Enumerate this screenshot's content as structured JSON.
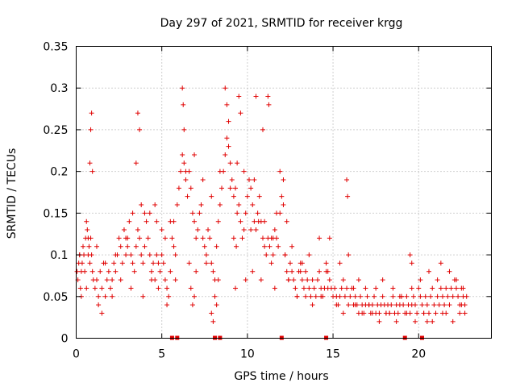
{
  "chart_data": {
    "type": "scatter",
    "title": "Day 297 of 2021, SRMTID for receiver krgg",
    "xlabel": "GPS time / hours",
    "ylabel": "SRMTID / TECUs",
    "xlim": [
      0,
      24.25
    ],
    "ylim": [
      0,
      0.35
    ],
    "xticks": [
      0,
      5,
      10,
      15,
      20
    ],
    "xtick_labels": [
      "0",
      "5",
      "10",
      "15",
      "20"
    ],
    "yticks": [
      0,
      0.05,
      0.1,
      0.15,
      0.2,
      0.25,
      0.3,
      0.35
    ],
    "ytick_labels": [
      "0",
      "0.05",
      "0.1",
      "0.15",
      "0.2",
      "0.25",
      "0.3",
      "0.35"
    ],
    "grid": true,
    "marker": "+",
    "color": "#e00000",
    "series": [
      {
        "name": "SRMTID",
        "x": [
          0.05,
          0.1,
          0.15,
          0.2,
          0.25,
          0.3,
          0.35,
          0.4,
          0.45,
          0.5,
          0.55,
          0.6,
          0.65,
          0.7,
          0.75,
          0.8,
          0.85,
          0.9,
          0.95,
          1.0,
          1.1,
          1.2,
          1.3,
          1.4,
          1.5,
          1.6,
          1.7,
          1.8,
          1.9,
          2.0,
          2.1,
          2.2,
          2.3,
          2.4,
          2.5,
          2.6,
          2.7,
          2.8,
          2.9,
          3.0,
          3.1,
          3.2,
          3.3,
          3.4,
          3.5,
          3.6,
          3.7,
          3.8,
          3.9,
          4.0,
          4.1,
          4.2,
          4.3,
          4.4,
          4.5,
          4.6,
          4.7,
          4.8,
          4.9,
          5.0,
          5.1,
          5.2,
          5.3,
          5.4,
          5.5,
          5.6,
          5.7,
          5.8,
          5.9,
          6.0,
          6.1,
          6.2,
          6.3,
          6.4,
          6.5,
          6.6,
          6.7,
          6.8,
          6.9,
          7.0,
          7.1,
          7.2,
          7.3,
          7.4,
          7.5,
          7.6,
          7.7,
          7.8,
          7.9,
          8.0,
          8.1,
          8.2,
          8.3,
          8.4,
          8.5,
          8.6,
          8.7,
          8.8,
          8.9,
          9.0,
          9.1,
          9.2,
          9.3,
          9.4,
          9.5,
          9.6,
          9.7,
          9.8,
          9.9,
          10.0,
          10.1,
          10.2,
          10.3,
          10.4,
          10.5,
          10.6,
          10.7,
          10.8,
          10.9,
          11.0,
          11.1,
          11.2,
          11.3,
          11.4,
          11.5,
          11.6,
          11.7,
          11.8,
          11.9,
          12.0,
          12.1,
          12.2,
          12.3,
          12.4,
          12.5,
          12.6,
          12.7,
          12.8,
          12.9,
          13.0,
          13.1,
          13.2,
          13.3,
          13.4,
          13.5,
          13.6,
          13.7,
          13.8,
          13.9,
          14.0,
          14.1,
          14.2,
          14.3,
          14.4,
          14.5,
          14.6,
          14.7,
          14.8,
          14.9,
          15.0,
          15.1,
          15.2,
          15.3,
          15.4,
          15.5,
          15.6,
          15.7,
          15.8,
          15.9,
          16.0,
          16.1,
          16.2,
          16.3,
          16.4,
          16.5,
          16.6,
          16.7,
          16.8,
          16.9,
          17.0,
          17.1,
          17.2,
          17.3,
          17.4,
          17.5,
          17.6,
          17.7,
          17.8,
          17.9,
          18.0,
          18.1,
          18.2,
          18.3,
          18.4,
          18.5,
          18.6,
          18.7,
          18.8,
          18.9,
          19.0,
          19.1,
          19.2,
          19.3,
          19.4,
          19.5,
          19.6,
          19.7,
          19.8,
          19.9,
          20.0,
          20.1,
          20.2,
          20.3,
          20.4,
          20.5,
          20.6,
          20.7,
          20.8,
          20.9,
          21.0,
          21.1,
          21.2,
          21.3,
          21.4,
          21.5,
          21.6,
          21.7,
          21.8,
          21.9,
          22.0,
          22.1,
          22.2,
          22.3,
          22.4,
          22.5,
          22.6,
          22.7,
          22.8,
          0.8,
          0.85,
          0.9,
          0.95,
          3.6,
          3.7,
          3.5,
          6.2,
          6.25,
          6.3,
          8.7,
          8.8,
          8.9,
          10.5,
          11.2,
          11.25,
          9.5,
          9.6,
          10.9,
          11.9,
          12.1,
          15.8,
          15.85,
          19.5,
          19.6,
          21.3,
          0.3,
          0.6,
          1.3,
          1.5,
          2.1,
          2.6,
          3.2,
          3.9,
          4.4,
          4.8,
          5.3,
          5.8,
          6.6,
          7.0,
          7.6,
          8.3,
          9.3,
          9.9,
          10.3,
          10.8,
          11.6,
          12.4,
          12.9,
          13.4,
          13.8,
          14.3,
          14.7,
          15.2,
          15.6,
          16.3,
          16.7,
          17.3,
          17.7,
          18.3,
          18.7,
          19.3,
          19.8,
          20.3,
          20.8,
          21.6,
          22.0,
          22.4,
          22.7,
          0.2,
          0.7,
          1.2,
          1.7,
          2.3,
          2.8,
          3.3,
          3.8,
          4.3,
          4.7,
          5.2,
          5.7,
          6.4,
          6.9,
          7.4,
          7.9,
          8.4,
          9.0,
          9.4,
          9.8,
          10.4,
          11.0,
          11.4,
          12.2,
          12.6,
          13.2,
          13.6,
          14.2,
          14.6,
          15.4,
          15.9,
          16.5,
          16.9,
          17.5,
          17.9,
          18.5,
          18.9,
          19.6,
          20.1,
          20.6,
          21.1,
          21.8,
          22.2,
          22.6,
          7.9,
          8.0,
          8.1,
          8.2,
          6.7,
          6.8,
          6.9,
          9.2,
          9.35,
          10.2,
          10.65,
          11.5,
          11.7,
          12.3,
          2.9,
          3.0,
          4.0,
          4.6,
          5.0,
          5.5,
          13.1,
          14.8,
          16.2,
          17.1,
          18.1,
          19.0,
          20.5,
          21.4,
          22.5
        ],
        "y": [
          0.08,
          0.07,
          0.09,
          0.1,
          0.06,
          0.08,
          0.09,
          0.11,
          0.1,
          0.08,
          0.12,
          0.14,
          0.13,
          0.1,
          0.11,
          0.09,
          0.12,
          0.1,
          0.08,
          0.07,
          0.06,
          0.07,
          0.05,
          0.08,
          0.06,
          0.09,
          0.05,
          0.07,
          0.08,
          0.06,
          0.07,
          0.09,
          0.08,
          0.1,
          0.12,
          0.11,
          0.09,
          0.13,
          0.12,
          0.11,
          0.14,
          0.1,
          0.09,
          0.08,
          0.11,
          0.13,
          0.12,
          0.1,
          0.09,
          0.11,
          0.14,
          0.12,
          0.1,
          0.08,
          0.09,
          0.07,
          0.1,
          0.09,
          0.08,
          0.1,
          0.09,
          0.07,
          0.06,
          0.05,
          0.08,
          0.12,
          0.14,
          0.1,
          0.16,
          0.18,
          0.2,
          0.22,
          0.21,
          0.19,
          0.17,
          0.2,
          0.18,
          0.15,
          0.14,
          0.12,
          0.13,
          0.15,
          0.16,
          0.12,
          0.11,
          0.1,
          0.13,
          0.12,
          0.09,
          0.08,
          0.07,
          0.11,
          0.14,
          0.16,
          0.18,
          0.2,
          0.22,
          0.24,
          0.23,
          0.21,
          0.19,
          0.17,
          0.18,
          0.15,
          0.16,
          0.14,
          0.12,
          0.13,
          0.15,
          0.17,
          0.19,
          0.18,
          0.16,
          0.14,
          0.13,
          0.15,
          0.17,
          0.14,
          0.12,
          0.11,
          0.1,
          0.12,
          0.11,
          0.09,
          0.1,
          0.13,
          0.12,
          0.11,
          0.15,
          0.17,
          0.16,
          0.1,
          0.08,
          0.07,
          0.09,
          0.08,
          0.07,
          0.06,
          0.05,
          0.08,
          0.09,
          0.07,
          0.06,
          0.08,
          0.07,
          0.06,
          0.05,
          0.07,
          0.06,
          0.05,
          0.07,
          0.08,
          0.06,
          0.05,
          0.06,
          0.09,
          0.08,
          0.07,
          0.06,
          0.05,
          0.06,
          0.05,
          0.04,
          0.05,
          0.06,
          0.07,
          0.05,
          0.06,
          0.04,
          0.05,
          0.06,
          0.04,
          0.05,
          0.04,
          0.03,
          0.05,
          0.04,
          0.03,
          0.04,
          0.05,
          0.04,
          0.03,
          0.04,
          0.05,
          0.03,
          0.04,
          0.03,
          0.04,
          0.05,
          0.04,
          0.03,
          0.04,
          0.03,
          0.04,
          0.05,
          0.03,
          0.04,
          0.03,
          0.04,
          0.05,
          0.04,
          0.03,
          0.05,
          0.04,
          0.03,
          0.04,
          0.05,
          0.04,
          0.03,
          0.06,
          0.05,
          0.04,
          0.03,
          0.05,
          0.04,
          0.03,
          0.05,
          0.06,
          0.04,
          0.03,
          0.05,
          0.04,
          0.06,
          0.05,
          0.04,
          0.06,
          0.05,
          0.04,
          0.06,
          0.05,
          0.07,
          0.06,
          0.05,
          0.04,
          0.06,
          0.05,
          0.04,
          0.05,
          0.21,
          0.25,
          0.27,
          0.2,
          0.27,
          0.25,
          0.21,
          0.3,
          0.28,
          0.25,
          0.3,
          0.28,
          0.26,
          0.29,
          0.29,
          0.28,
          0.29,
          0.27,
          0.25,
          0.2,
          0.19,
          0.19,
          0.17,
          0.1,
          0.09,
          0.09,
          0.05,
          0.06,
          0.04,
          0.03,
          0.05,
          0.07,
          0.06,
          0.05,
          0.07,
          0.06,
          0.04,
          0.07,
          0.09,
          0.08,
          0.09,
          0.07,
          0.06,
          0.07,
          0.08,
          0.07,
          0.06,
          0.07,
          0.05,
          0.05,
          0.04,
          0.05,
          0.06,
          0.04,
          0.03,
          0.04,
          0.03,
          0.03,
          0.02,
          0.03,
          0.02,
          0.03,
          0.02,
          0.03,
          0.02,
          0.03,
          0.02,
          0.03,
          0.03,
          0.1,
          0.12,
          0.11,
          0.09,
          0.1,
          0.13,
          0.15,
          0.16,
          0.15,
          0.14,
          0.12,
          0.11,
          0.2,
          0.22,
          0.19,
          0.17,
          0.2,
          0.18,
          0.21,
          0.2,
          0.19,
          0.14,
          0.12,
          0.1,
          0.11,
          0.09,
          0.1,
          0.12,
          0.08,
          0.09,
          0.1,
          0.07,
          0.06,
          0.06,
          0.07,
          0.06,
          0.05,
          0.06,
          0.07,
          0.08,
          0.07,
          0.08,
          0.07,
          0.06,
          0.03,
          0.02,
          0.05,
          0.04,
          0.06,
          0.04,
          0.05,
          0.12,
          0.11,
          0.13,
          0.14,
          0.12,
          0.15,
          0.14,
          0.1,
          0.12,
          0.15,
          0.16,
          0.13,
          0.14,
          0.08,
          0.12,
          0.06,
          0.04,
          0.03,
          0.05,
          0.02,
          0.03,
          0.04
        ]
      }
    ],
    "gap_markers_x": [
      5.6,
      5.9,
      8.1,
      8.4,
      12.0,
      14.6,
      19.2,
      20.2
    ]
  }
}
